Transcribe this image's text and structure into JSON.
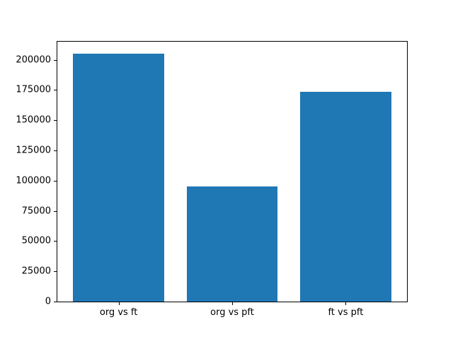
{
  "chart_data": {
    "type": "bar",
    "title": "",
    "xlabel": "",
    "ylabel": "",
    "categories": [
      "org vs ft",
      "org vs pft",
      "ft vs pft"
    ],
    "values": [
      204800,
      95400,
      173300
    ],
    "ylim": [
      0,
      215000
    ],
    "yticks": [
      0,
      25000,
      50000,
      75000,
      100000,
      125000,
      150000,
      175000,
      200000
    ],
    "bar_color": "#1f77b4",
    "axis_color": "#000000",
    "background_color": "#ffffff",
    "bar_width_fraction": 0.8,
    "grid": false,
    "legend": null
  }
}
